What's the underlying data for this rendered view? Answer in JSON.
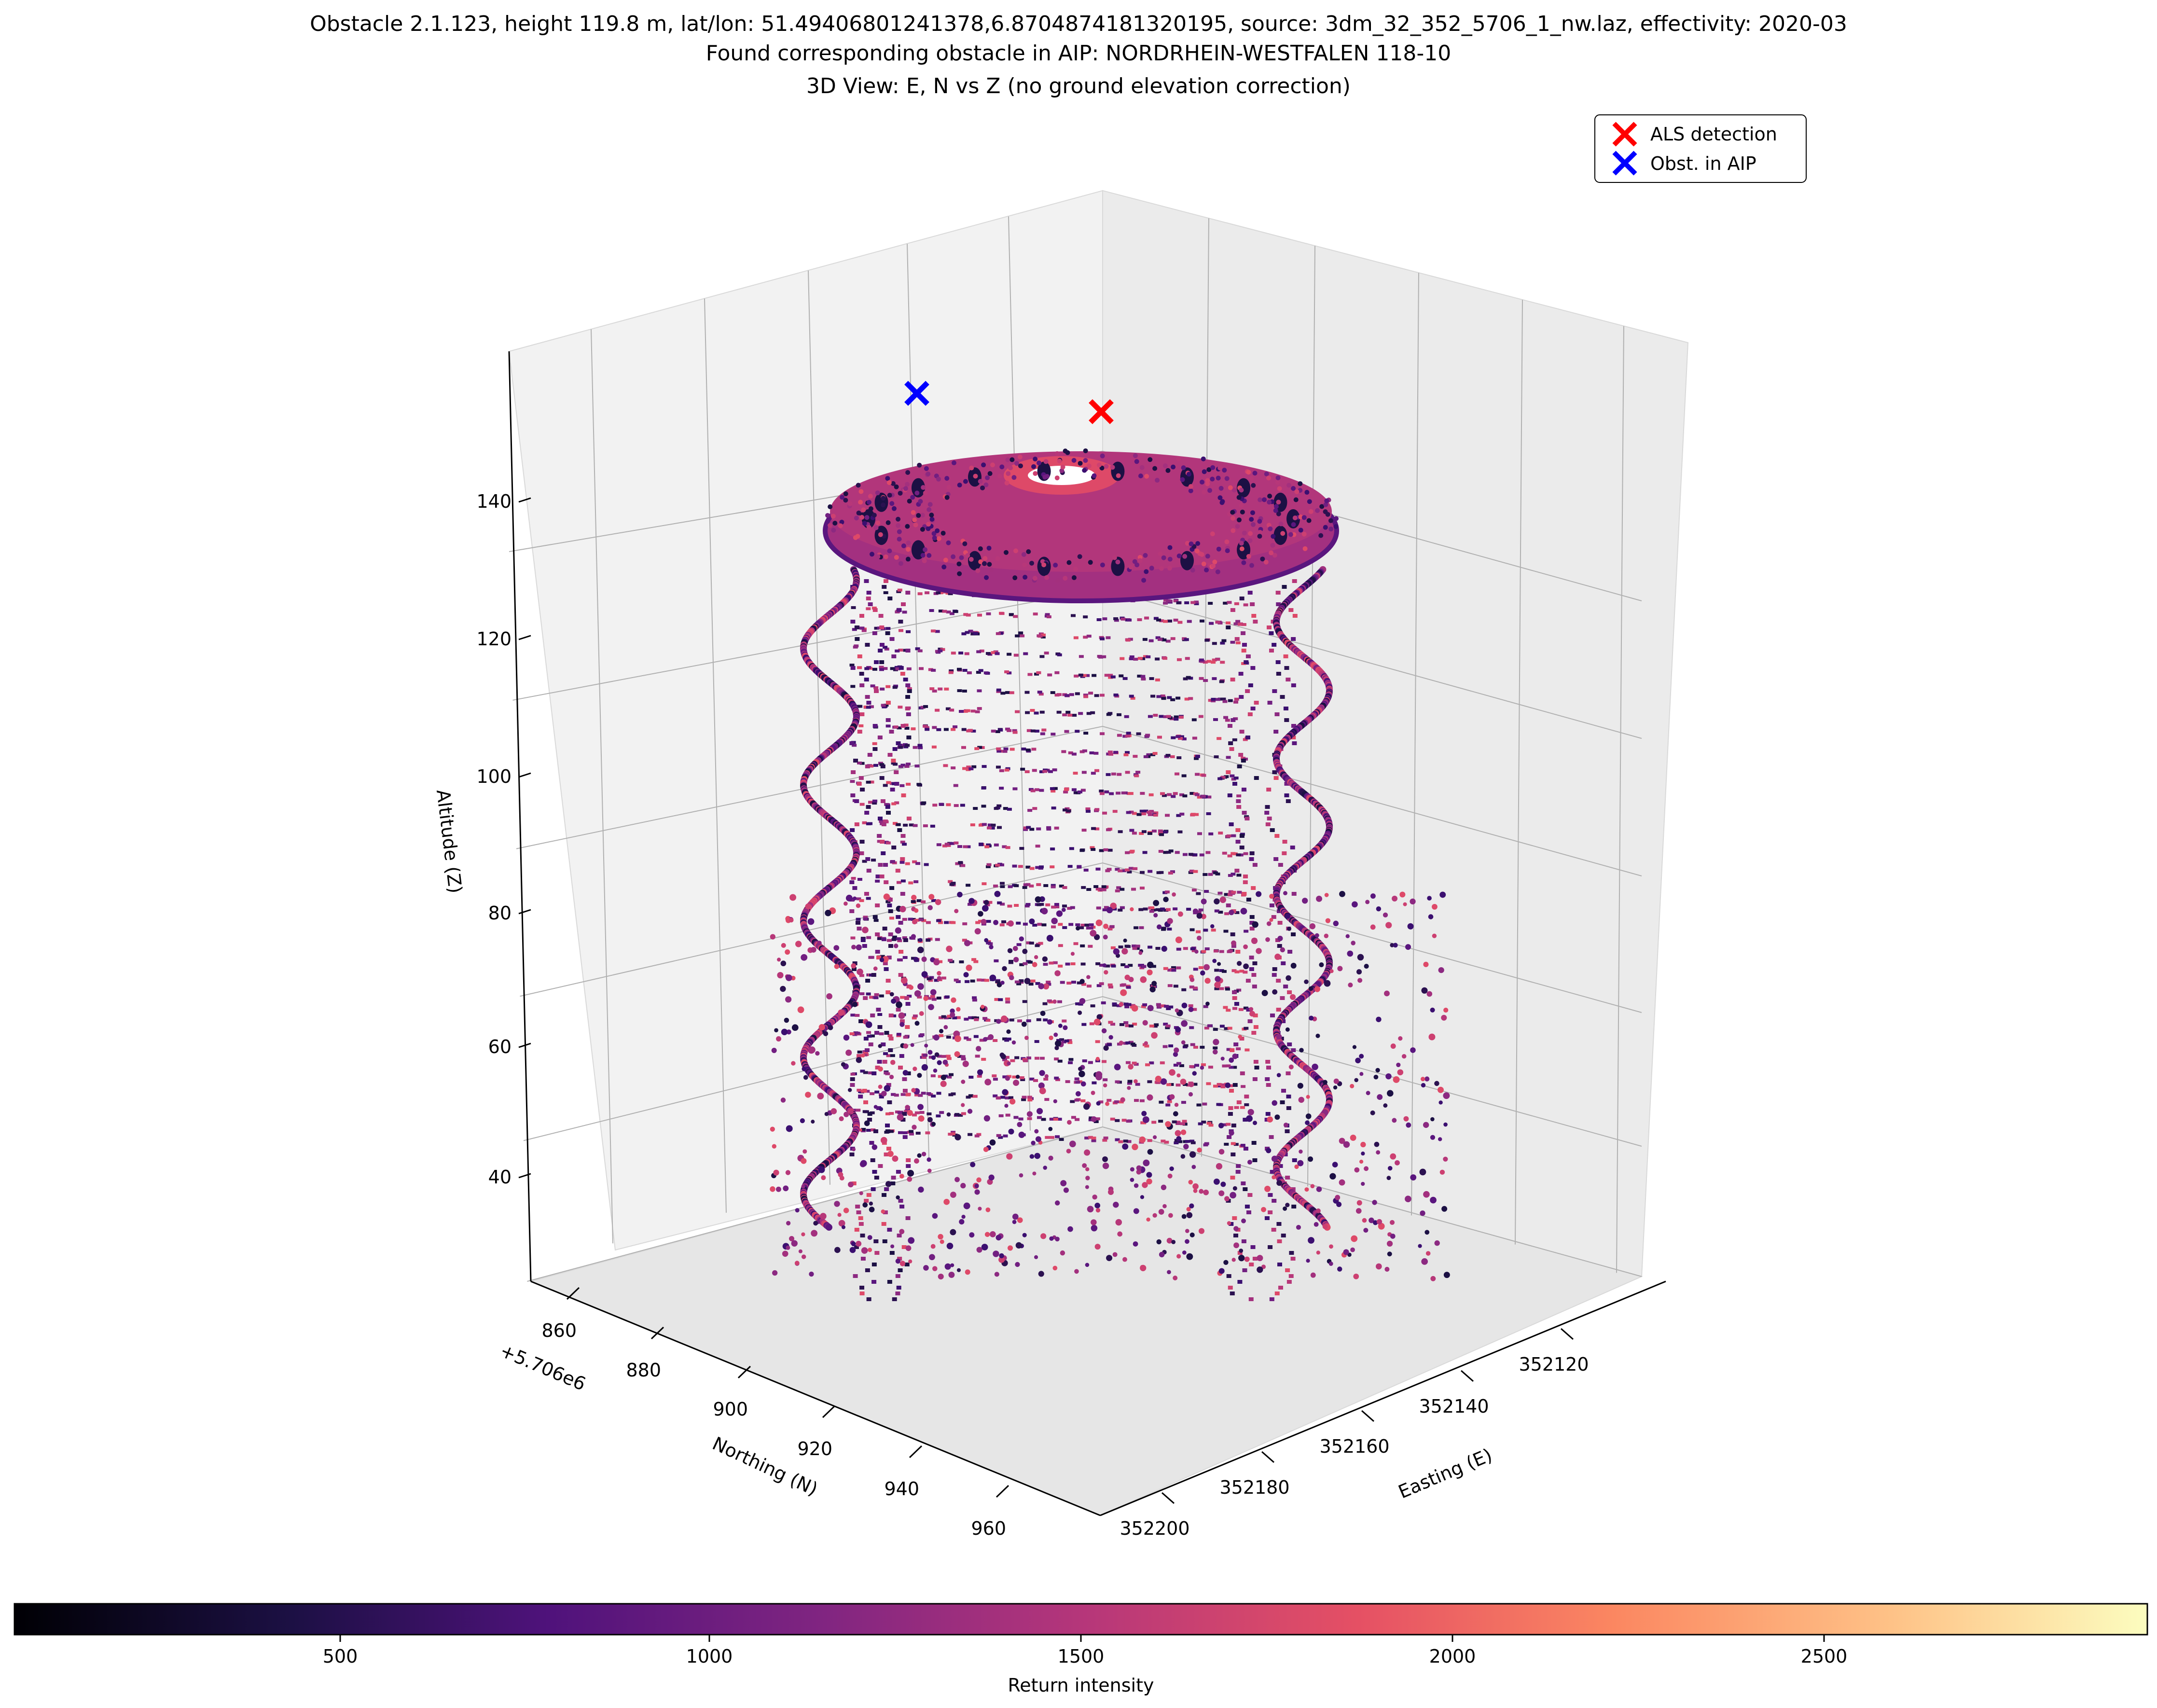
{
  "title_lines": [
    "Obstacle 2.1.123, height 119.8 m, lat/lon: 51.49406801241378,6.8704874181320195, source: 3dm_32_352_5706_1_nw.laz, effectivity: 2020-03",
    "Found corresponding obstacle in AIP: NORDRHEIN-WESTFALEN 118-10",
    "3D View: E, N vs Z (no ground elevation correction)"
  ],
  "legend": [
    {
      "label": "ALS detection",
      "color": "#ff0000",
      "marker": "x-icon"
    },
    {
      "label": "Obst. in AIP",
      "color": "#0000ff",
      "marker": "x-icon"
    }
  ],
  "axes": {
    "z_label": "Altitude (Z)",
    "z_ticks": [
      "40",
      "60",
      "80",
      "100",
      "120",
      "140"
    ],
    "n_label": "Northing (N)",
    "n_offset": "+5.706e6",
    "n_ticks": [
      "860",
      "880",
      "900",
      "920",
      "940",
      "960"
    ],
    "e_label": "Easting (E)",
    "e_ticks": [
      "352120",
      "352140",
      "352160",
      "352180",
      "352200"
    ]
  },
  "colorbar": {
    "label": "Return intensity",
    "ticks": [
      "500",
      "1000",
      "1500",
      "2000",
      "2500"
    ],
    "colormap": "magma"
  },
  "chart_data": {
    "type": "scatter",
    "projection": "3d",
    "title": "Obstacle 2.1.123, height 119.8 m, lat/lon: 51.49406801241378,6.8704874181320195, source: 3dm_32_352_5706_1_nw.laz, effectivity: 2020-03 / Found corresponding obstacle in AIP: NORDRHEIN-WESTFALEN 118-10 / 3D View: E, N vs Z (no ground elevation correction)",
    "xlabel": "Easting (E)",
    "ylabel": "Northing (N)",
    "zlabel": "Altitude (Z)",
    "xlim": [
      352105,
      352210
    ],
    "ylim": [
      5706850,
      5706960
    ],
    "zlim": [
      25,
      160
    ],
    "colorbar_range": [
      0,
      2900
    ],
    "markers": [
      {
        "name": "ALS detection",
        "color": "#ff0000",
        "e": 352182,
        "n": 5706876,
        "z": 154
      },
      {
        "name": "Obst. in AIP",
        "color": "#0000ff",
        "e": 352172,
        "n": 5706860,
        "z": 154
      }
    ],
    "point_cloud": "dense lidar return points forming a cylindrical tower with a disc-shaped top platform near z≈140, helical stair rails around the shaft, coloured by return intensity",
    "grid": true
  }
}
